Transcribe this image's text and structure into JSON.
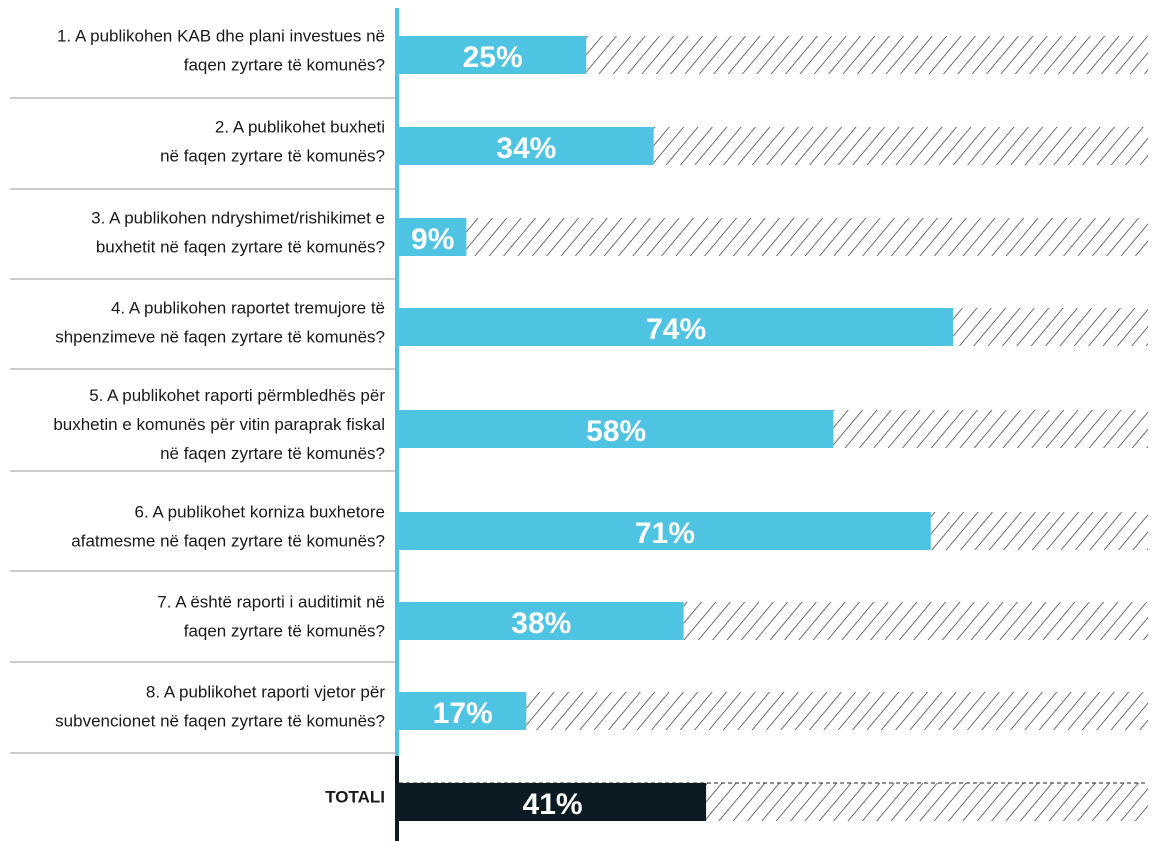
{
  "chart_data": {
    "type": "bar",
    "orientation": "horizontal",
    "categories": [
      [
        "1. A publikohen KAB dhe plani investues në",
        "faqen zyrtare të komunës?"
      ],
      [
        "2. A publikohet buxheti",
        "në faqen zyrtare të komunës?"
      ],
      [
        "3. A publikohen ndryshimet/rishikimet e",
        "buxhetit në faqen zyrtare të komunës?"
      ],
      [
        "4. A publikohen raportet tremujore të",
        "shpenzimeve në faqen zyrtare të komunës?"
      ],
      [
        "5. A publikohet raporti përmbledhës për",
        "buxhetin e komunës për vitin paraprak fiskal",
        "në faqen zyrtare të komunës?"
      ],
      [
        "6. A publikohet korniza buxhetore",
        "afatmesme në faqen zyrtare të komunës?"
      ],
      [
        "7. A është raporti i auditimit në",
        "faqen zyrtare të komunës?"
      ],
      [
        "8. A publikohet raporti vjetor për",
        "subvencionet në faqen zyrtare të komunës?"
      ]
    ],
    "values": [
      25,
      34,
      9,
      74,
      58,
      71,
      38,
      17
    ],
    "value_labels": [
      "25%",
      "34%",
      "9%",
      "74%",
      "58%",
      "71%",
      "38%",
      "17%"
    ],
    "color": "#4fc4e2",
    "total": {
      "label": "TOTALI",
      "value": 41,
      "value_label": "41%",
      "color": "#0c1a23"
    },
    "xlim": [
      0,
      100
    ]
  }
}
